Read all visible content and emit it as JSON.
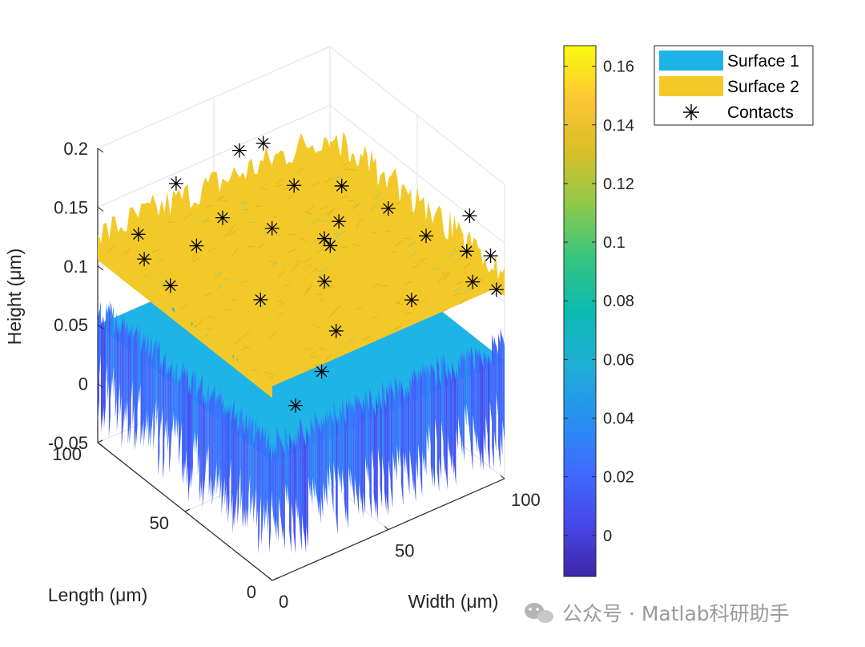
{
  "chart_data": {
    "type": "surface",
    "title": "",
    "xlabel": "Width (μm)",
    "ylabel": "Length (μm)",
    "zlabel": "Height (μm)",
    "x_ticks": [
      "0",
      "50",
      "100"
    ],
    "y_ticks": [
      "0",
      "50",
      "100"
    ],
    "z_ticks": [
      "-0.05",
      "0",
      "0.05",
      "0.1",
      "0.15",
      "0.2"
    ],
    "xlim": [
      0,
      100
    ],
    "ylim": [
      0,
      100
    ],
    "zlim": [
      -0.05,
      0.2
    ],
    "grid": true,
    "legend_position": "top-right",
    "series": [
      {
        "name": "Surface 1",
        "kind": "surface",
        "color": "#1fb4e6",
        "mean_height": 0.02,
        "range": [
          -0.04,
          0.08
        ]
      },
      {
        "name": "Surface 2",
        "kind": "surface",
        "color": "#f2c929",
        "mean_height": 0.12,
        "range": [
          0.09,
          0.16
        ]
      },
      {
        "name": "Contacts",
        "kind": "scatter",
        "marker": "*",
        "color": "#000000",
        "points": [
          {
            "x": 5,
            "y": 80,
            "z": 0.125
          },
          {
            "x": 10,
            "y": 90,
            "z": 0.13
          },
          {
            "x": 5,
            "y": 65,
            "z": 0.12
          },
          {
            "x": 30,
            "y": 95,
            "z": 0.15
          },
          {
            "x": 20,
            "y": 70,
            "z": 0.135
          },
          {
            "x": 25,
            "y": 40,
            "z": 0.12
          },
          {
            "x": 35,
            "y": 75,
            "z": 0.14
          },
          {
            "x": 55,
            "y": 92,
            "z": 0.16
          },
          {
            "x": 60,
            "y": 85,
            "z": 0.17
          },
          {
            "x": 62,
            "y": 70,
            "z": 0.15
          },
          {
            "x": 60,
            "y": 50,
            "z": 0.13
          },
          {
            "x": 45,
            "y": 30,
            "z": 0.13
          },
          {
            "x": 35,
            "y": 10,
            "z": 0.12
          },
          {
            "x": 25,
            "y": 5,
            "z": 0.1
          },
          {
            "x": 10,
            "y": 0,
            "z": 0.09
          },
          {
            "x": 55,
            "y": 40,
            "z": 0.14
          },
          {
            "x": 75,
            "y": 60,
            "z": 0.15
          },
          {
            "x": 70,
            "y": 55,
            "z": 0.13
          },
          {
            "x": 85,
            "y": 25,
            "z": 0.14
          },
          {
            "x": 95,
            "y": 15,
            "z": 0.13
          },
          {
            "x": 90,
            "y": 5,
            "z": 0.12
          },
          {
            "x": 98,
            "y": 2,
            "z": 0.11
          },
          {
            "x": 100,
            "y": 8,
            "z": 0.13
          },
          {
            "x": 100,
            "y": 20,
            "z": 0.15
          },
          {
            "x": 80,
            "y": 40,
            "z": 0.15
          },
          {
            "x": 45,
            "y": 60,
            "z": 0.14
          },
          {
            "x": 75,
            "y": 20,
            "z": 0.1
          }
        ]
      }
    ],
    "colorbar": {
      "ticks": [
        "0",
        "0.02",
        "0.04",
        "0.06",
        "0.08",
        "0.1",
        "0.12",
        "0.14",
        "0.16"
      ],
      "tick_values": [
        0,
        0.02,
        0.04,
        0.06,
        0.08,
        0.1,
        0.12,
        0.14,
        0.16
      ],
      "range": [
        -0.014,
        0.167
      ],
      "colormap": "parula"
    }
  },
  "watermark": {
    "text": "公众号 · Matlab科研助手",
    "icon": "wechat-icon"
  }
}
